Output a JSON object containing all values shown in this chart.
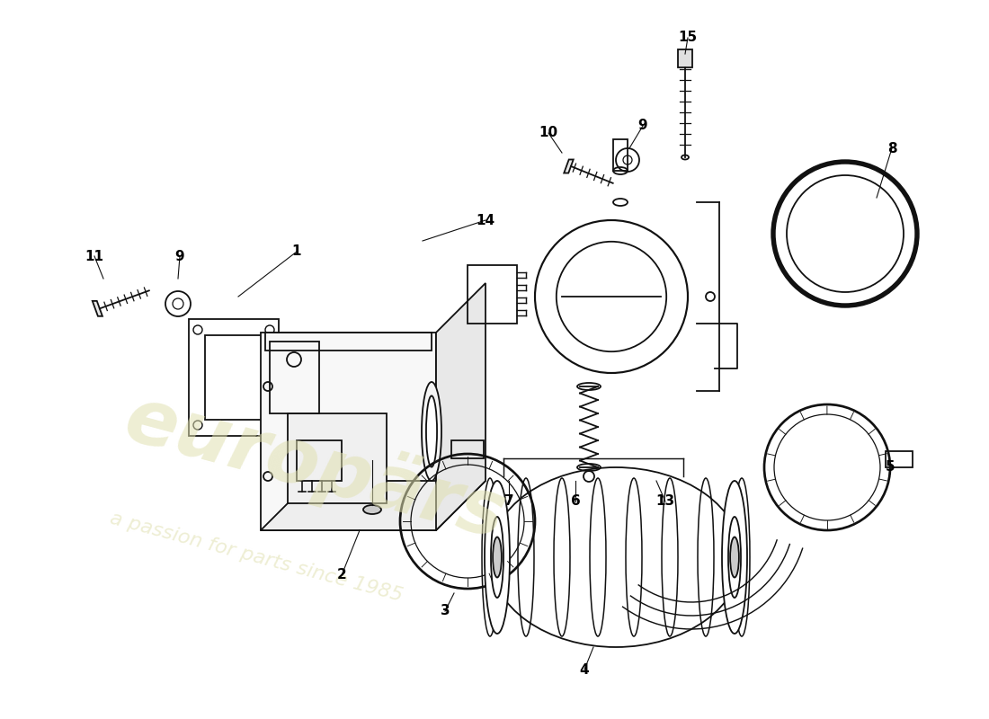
{
  "background_color": "#ffffff",
  "line_color": "#111111",
  "watermark_color": "#e0e0b0",
  "figsize": [
    11.0,
    8.0
  ],
  "dpi": 100,
  "xlim": [
    0,
    1100
  ],
  "ylim": [
    0,
    800
  ]
}
